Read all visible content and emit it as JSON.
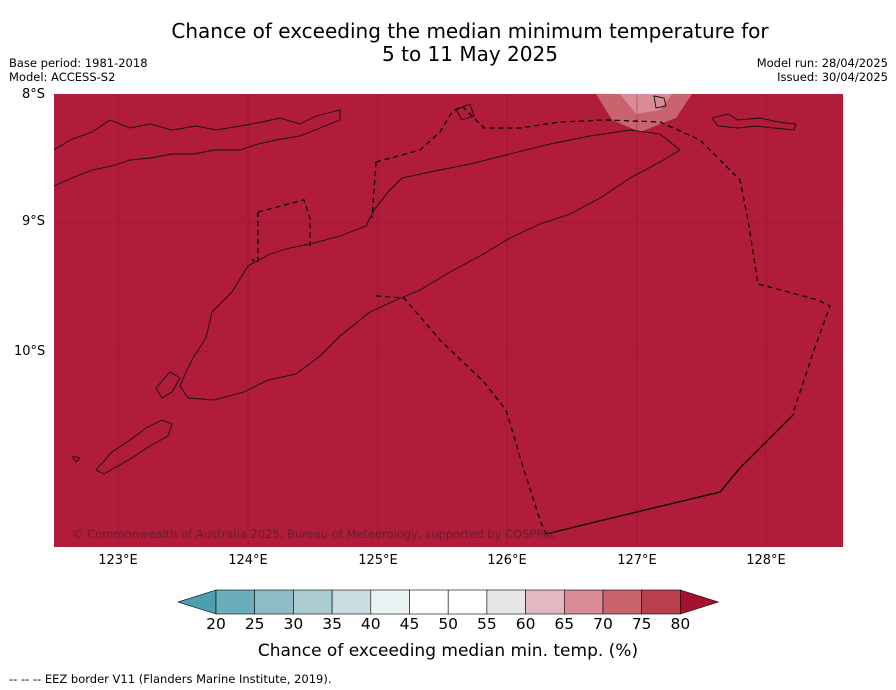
{
  "header": {
    "title_line1": "Chance of exceeding the median minimum temperature for",
    "title_line2": "5 to 11 May 2025",
    "base_period": "Base period: 1981-2018",
    "model": "Model: ACCESS-S2",
    "model_run": "Model run: 28/04/2025",
    "issued": "Issued: 30/04/2025"
  },
  "map": {
    "background_color": "#b01c3a",
    "land_outline_color": "#111111",
    "eez_border_color": "#000000",
    "lat_labels": [
      "8°S",
      "9°S",
      "10°S"
    ],
    "lon_labels": [
      "123°E",
      "124°E",
      "125°E",
      "126°E",
      "127°E",
      "128°E"
    ],
    "copyright": "© Commonwealth of Australia 2025, Bureau of Meteorology, supported by COSPPac"
  },
  "colorbar": {
    "ticks": [
      "20",
      "25",
      "30",
      "35",
      "40",
      "45",
      "50",
      "55",
      "60",
      "65",
      "70",
      "75",
      "80"
    ],
    "colors": [
      "#4b9fae",
      "#6aaebb",
      "#8dbcc6",
      "#abcdd2",
      "#c9dce0",
      "#eaf2f3",
      "#ffffff",
      "#ffffff",
      "#e6e6e6",
      "#e4b8c1",
      "#d98b97",
      "#c9646f",
      "#b93f4d",
      "#a5122e"
    ],
    "label": "Chance of exceeding median min. temp. (%)"
  },
  "footer": {
    "eez_note": "--  --  -- EEZ border V11 (Flanders Marine Institute, 2019)."
  }
}
